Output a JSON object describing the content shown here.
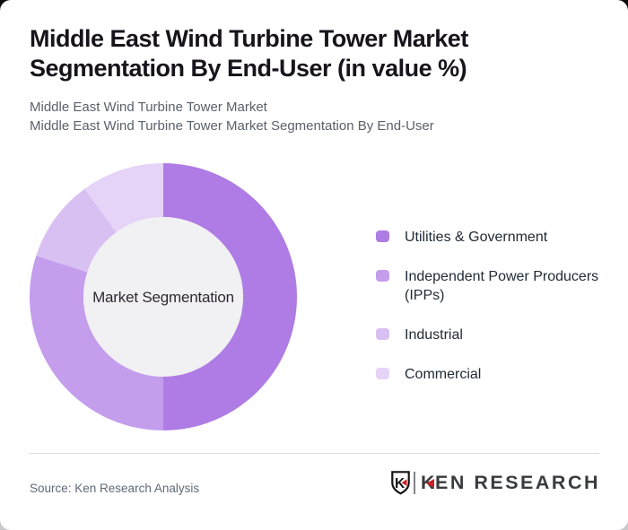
{
  "header": {
    "title": "Middle East Wind Turbine Tower Market Segmentation By End-User (in value %)",
    "subtitle_line1": "Middle East Wind Turbine Tower Market",
    "subtitle_line2": "Middle East Wind Turbine Tower Market Segmentation By End-User"
  },
  "chart_data": {
    "type": "pie",
    "variant": "donut",
    "title": "Middle East Wind Turbine Tower Market Segmentation By End-User (in value %)",
    "unit": "value %",
    "center_label": "Market Segmentation",
    "categories": [
      "Utilities & Government",
      "Independent Power Producers (IPPs)",
      "Industrial",
      "Commercial"
    ],
    "values": [
      50,
      30,
      10,
      10
    ],
    "colors": [
      "#ae7ce4",
      "#c49ded",
      "#d9c0f3",
      "#e5d3f8"
    ],
    "start_angle_deg": 0,
    "direction": "clockwise",
    "donut_hole_color": "#f1f0f2",
    "legend_position": "right",
    "grid": false
  },
  "footer": {
    "source": "Source: Ken Research Analysis",
    "logo": {
      "badge_letter": "K",
      "wordmark_first_letter": "K",
      "wordmark_rest": "EN RESEARCH",
      "accent_color": "#cb2026",
      "text_color": "#3a3b3f"
    }
  }
}
